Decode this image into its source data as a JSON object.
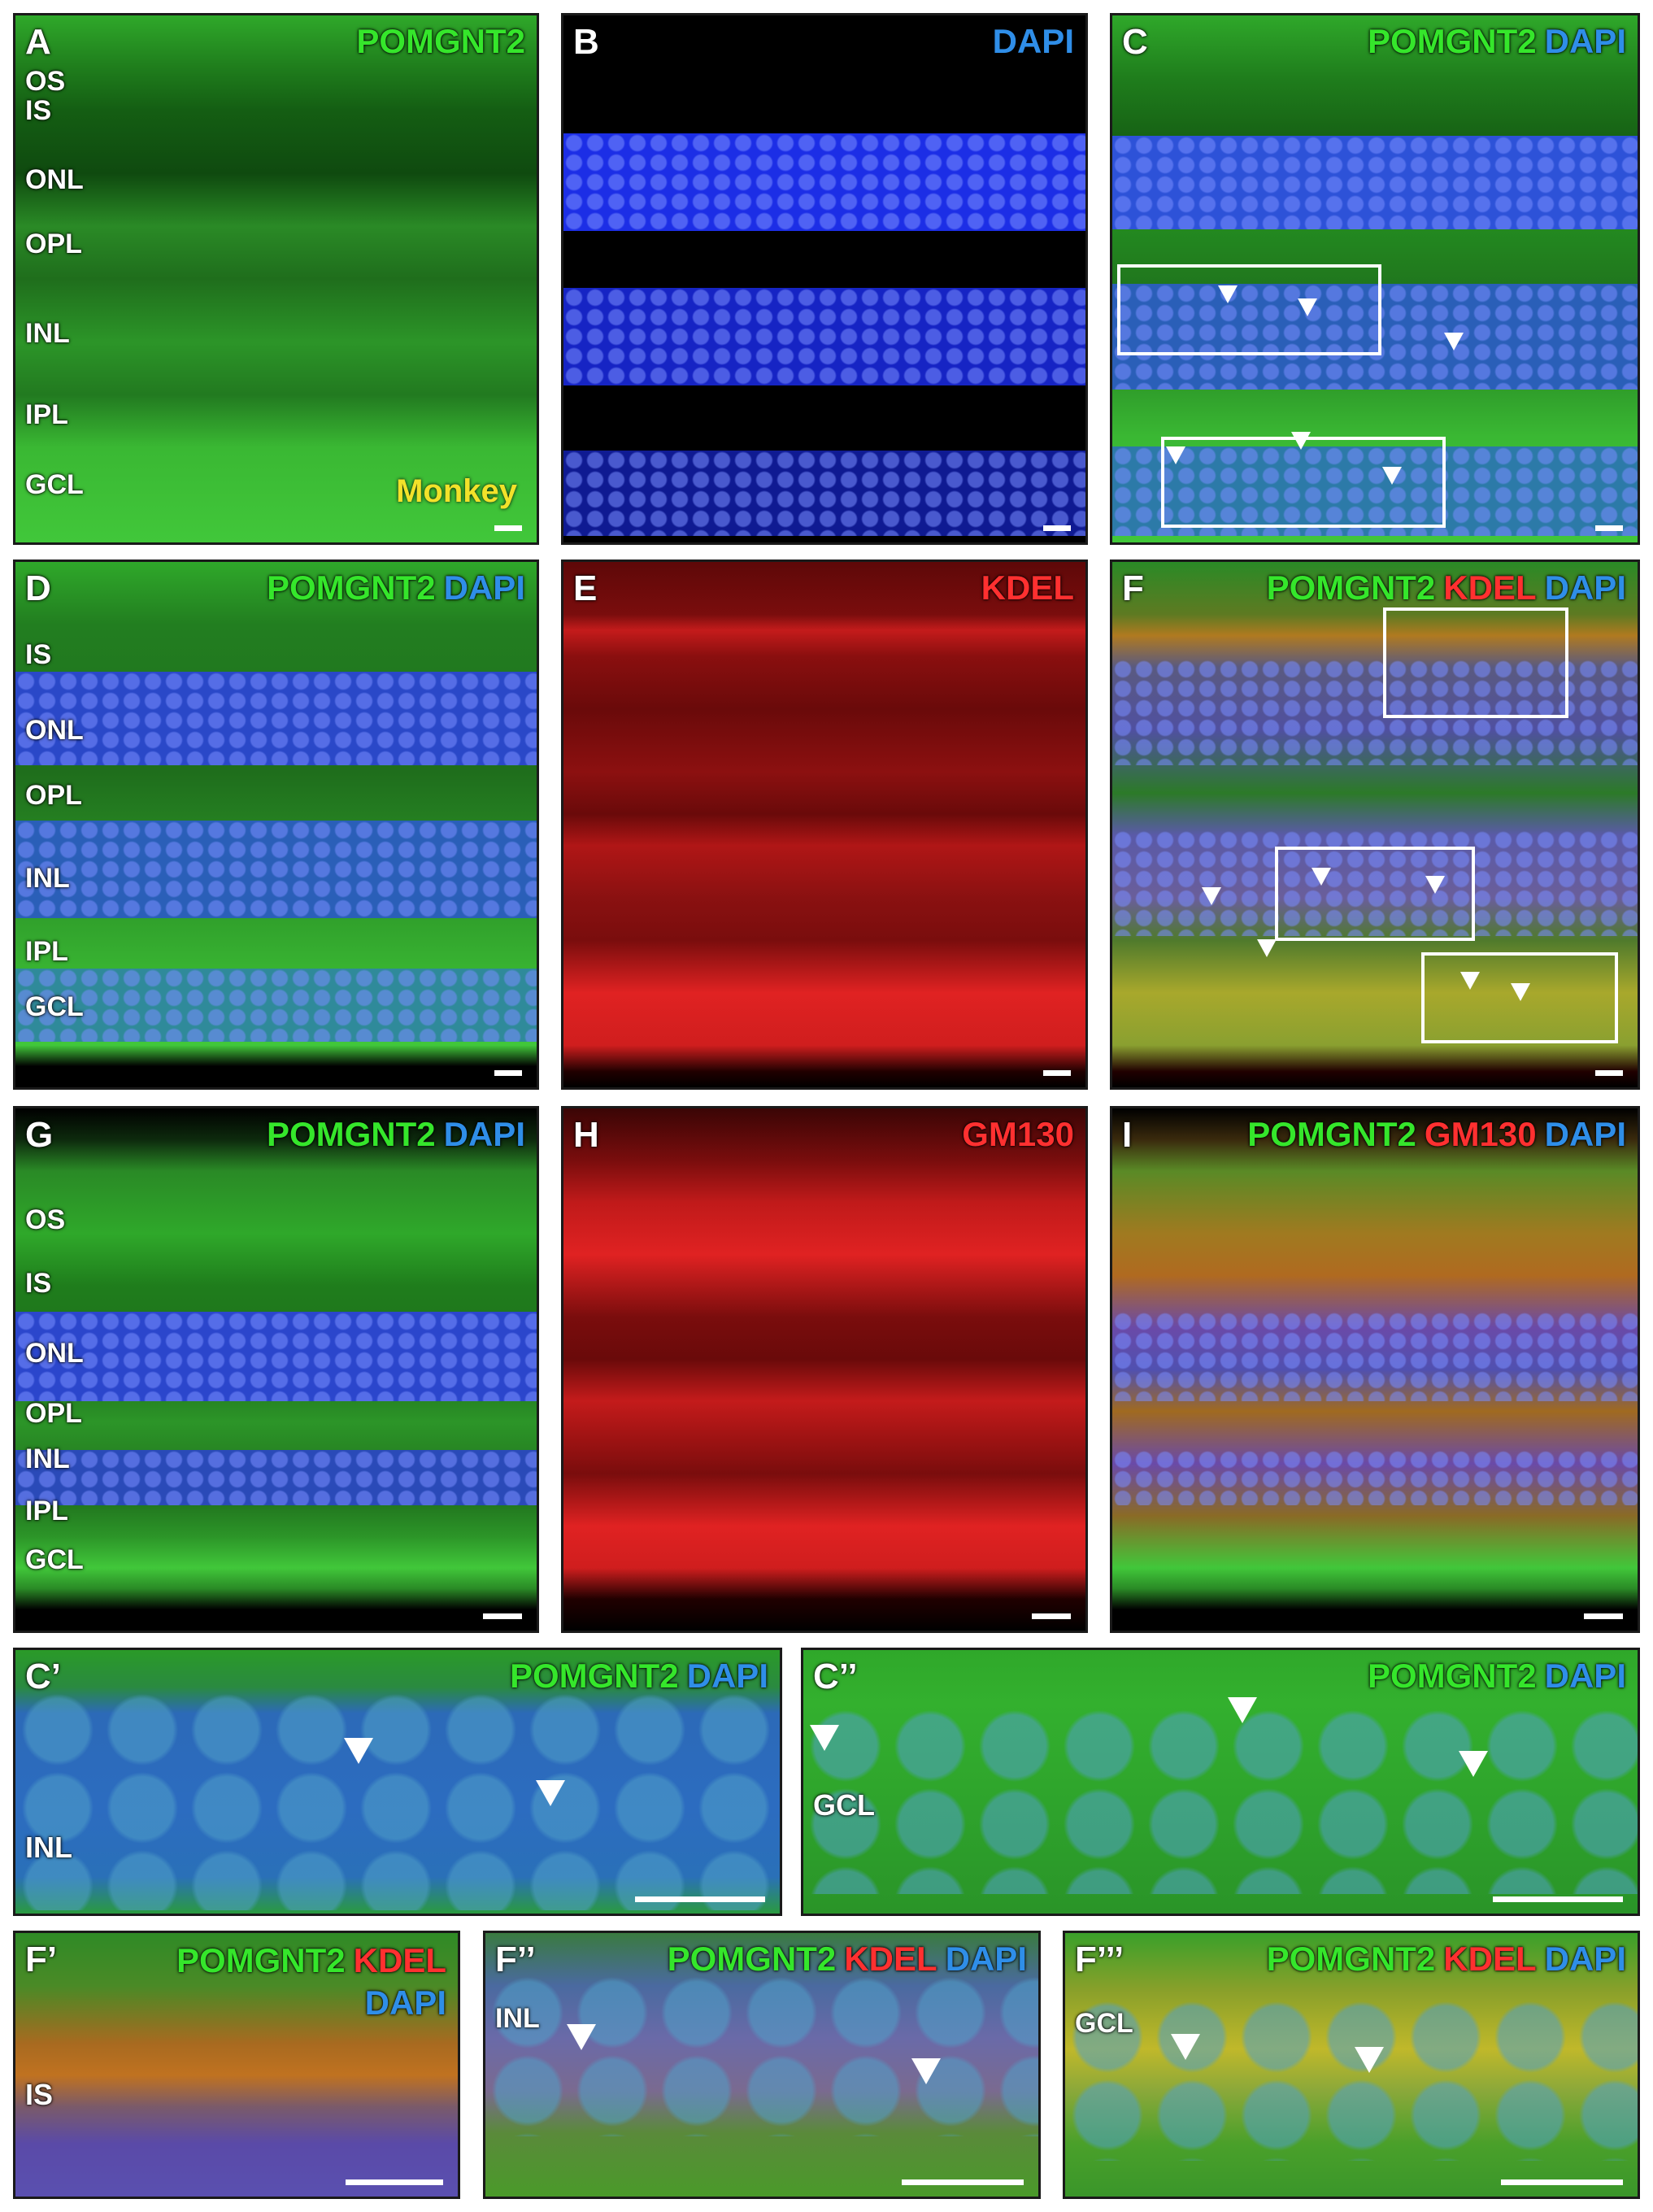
{
  "colors": {
    "green": "#35e62b",
    "blue": "#2f8ee8",
    "red": "#ff3030",
    "yellow": "#f2e22a"
  },
  "panels": {
    "A": {
      "label": "A",
      "channels": [
        "POMGNT2"
      ],
      "layers": [
        "OS",
        "IS",
        "ONL",
        "OPL",
        "INL",
        "IPL",
        "GCL"
      ],
      "species": "Monkey"
    },
    "B": {
      "label": "B",
      "channels": [
        "DAPI"
      ]
    },
    "C": {
      "label": "C",
      "channels": [
        "POMGNT2",
        "DAPI"
      ]
    },
    "D": {
      "label": "D",
      "channels": [
        "POMGNT2",
        "DAPI"
      ],
      "layers": [
        "IS",
        "ONL",
        "OPL",
        "INL",
        "IPL",
        "GCL"
      ]
    },
    "E": {
      "label": "E",
      "channels": [
        "KDEL"
      ]
    },
    "F": {
      "label": "F",
      "channels": [
        "POMGNT2",
        "KDEL",
        "DAPI"
      ]
    },
    "G": {
      "label": "G",
      "channels": [
        "POMGNT2",
        "DAPI"
      ],
      "layers": [
        "OS",
        "IS",
        "ONL",
        "OPL",
        "INL",
        "IPL",
        "GCL"
      ]
    },
    "H": {
      "label": "H",
      "channels": [
        "GM130"
      ]
    },
    "I": {
      "label": "I",
      "channels": [
        "POMGNT2",
        "GM130",
        "DAPI"
      ]
    },
    "C1": {
      "label": "C’",
      "channels": [
        "POMGNT2",
        "DAPI"
      ],
      "layers": [
        "INL"
      ]
    },
    "C2": {
      "label": "C’’",
      "channels": [
        "POMGNT2",
        "DAPI"
      ],
      "layers": [
        "GCL"
      ]
    },
    "F1": {
      "label": "F’",
      "channels": [
        "POMGNT2",
        "KDEL",
        "DAPI"
      ],
      "layers": [
        "IS"
      ]
    },
    "F2": {
      "label": "F’’",
      "channels": [
        "POMGNT2",
        "KDEL",
        "DAPI"
      ],
      "layers": [
        "INL"
      ]
    },
    "F3": {
      "label": "F’’’",
      "channels": [
        "POMGNT2",
        "KDEL",
        "DAPI"
      ],
      "layers": [
        "GCL"
      ]
    }
  }
}
